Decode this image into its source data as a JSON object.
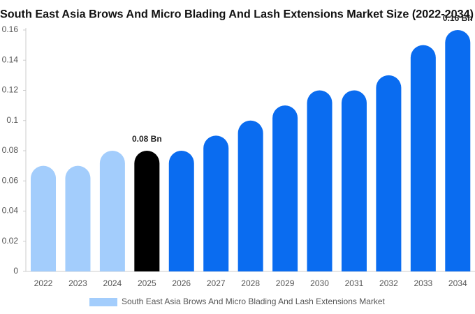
{
  "chart_data": {
    "type": "bar",
    "title": "South East Asia Brows And Micro Blading And Lash Extensions Market Size (2022-2034)",
    "categories": [
      "2022",
      "2023",
      "2024",
      "2025",
      "2026",
      "2027",
      "2028",
      "2029",
      "2030",
      "2031",
      "2032",
      "2033",
      "2034"
    ],
    "series": [
      {
        "name": "South East Asia Brows And Micro Blading And Lash Extensions Market",
        "color": "#a3cdfc",
        "values": [
          0.07,
          0.07,
          0.08,
          0.08,
          0.08,
          0.09,
          0.1,
          0.11,
          0.12,
          0.12,
          0.13,
          0.15,
          0.16
        ],
        "value_labels": [
          null,
          null,
          null,
          "0.08 Bn",
          null,
          null,
          null,
          null,
          null,
          null,
          null,
          null,
          "0.16 Bn"
        ],
        "colors": [
          "#a3cdfc",
          "#a3cdfc",
          "#a3cdfc",
          "#000000",
          "#0a6cf0",
          "#0a6cf0",
          "#0a6cf0",
          "#0a6cf0",
          "#0a6cf0",
          "#0a6cf0",
          "#0a6cf0",
          "#0a6cf0",
          "#0a6cf0"
        ]
      }
    ],
    "ylim": [
      0,
      0.16
    ],
    "yticks": [
      0,
      0.02,
      0.04,
      0.06,
      0.08,
      0.1,
      0.12,
      0.14,
      0.16
    ],
    "grid": false,
    "legend": "bottom"
  }
}
